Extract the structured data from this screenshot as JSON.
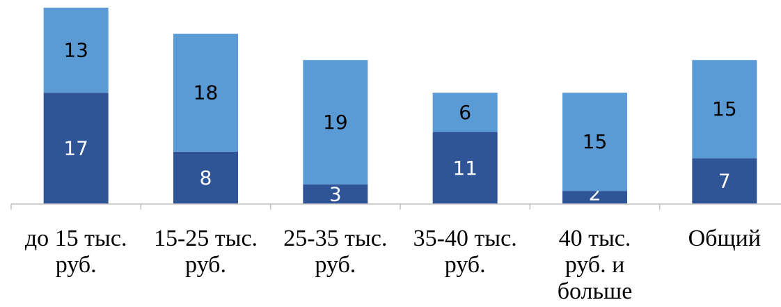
{
  "chart_data": {
    "type": "bar",
    "stacked": true,
    "categories": [
      [
        "до 15 тыс.",
        "руб."
      ],
      [
        "15-25 тыс.",
        "руб."
      ],
      [
        "25-35 тыс.",
        "руб."
      ],
      [
        "35-40 тыс.",
        "руб."
      ],
      [
        "40 тыс.",
        "руб. и",
        "больше"
      ],
      [
        "Общий"
      ]
    ],
    "series": [
      {
        "values": [
          17,
          8,
          3,
          11,
          2,
          7
        ],
        "color": "#2f5597",
        "label_color": "#ffffff"
      },
      {
        "values": [
          13,
          18,
          19,
          6,
          15,
          15
        ],
        "color": "#5b9bd5",
        "label_color": "#000000"
      }
    ],
    "title": "",
    "xlabel": "",
    "ylabel": "",
    "ylim": [
      0,
      30
    ],
    "grid": false,
    "legend": "none",
    "axis_color": "#bfbfbf"
  }
}
